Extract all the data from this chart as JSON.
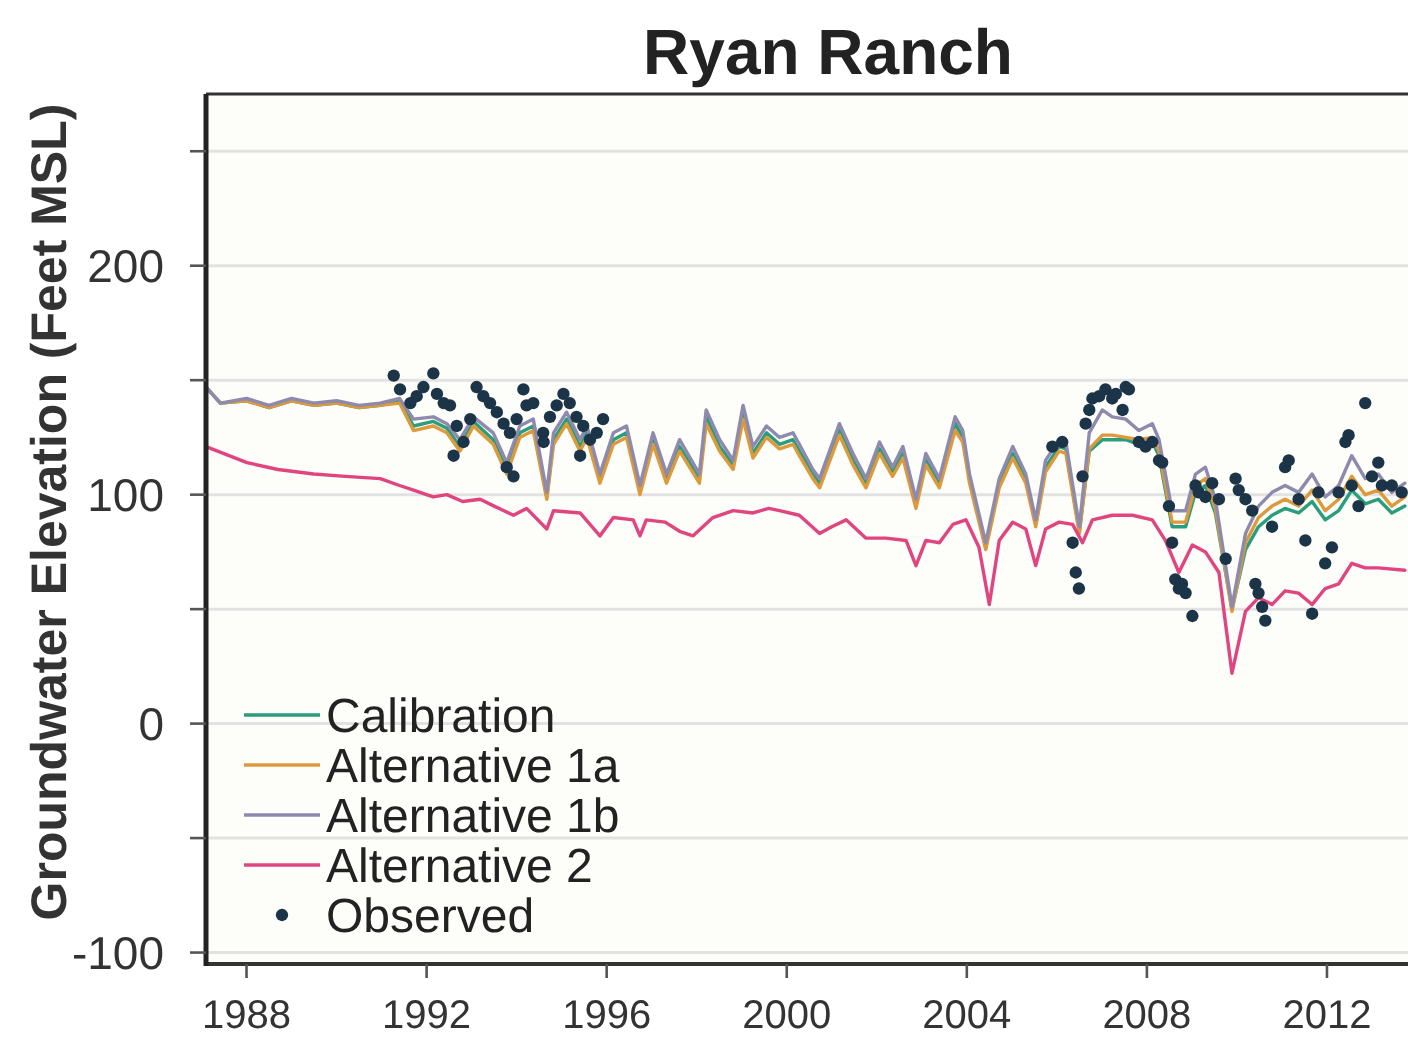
{
  "chart_data": {
    "type": "line",
    "title": "Ryan Ranch",
    "ylabel": "Groundwater Elevation (Feet MSL)",
    "x": [
      1987.1,
      1987.42,
      1988.0,
      1988.5,
      1989.0,
      1989.5,
      1990.0,
      1990.5,
      1990.97,
      1991.4,
      1991.71,
      1992.15,
      1992.45,
      1992.74,
      1993.04,
      1993.48,
      1993.78,
      1994.07,
      1994.37,
      1994.67,
      1994.82,
      1995.11,
      1995.41,
      1995.56,
      1995.85,
      1996.15,
      1996.44,
      1996.74,
      1997.03,
      1997.33,
      1997.62,
      1998.06,
      1998.21,
      1998.51,
      1998.81,
      1999.03,
      1999.25,
      1999.55,
      1999.84,
      2000.14,
      2000.28,
      2000.58,
      2000.73,
      2001.17,
      2001.47,
      2001.76,
      2002.06,
      2002.35,
      2002.58,
      2002.87,
      2003.09,
      2003.39,
      2003.74,
      2003.91,
      2004.06,
      2004.42,
      2004.72,
      2005.02,
      2005.31,
      2005.53,
      2005.75,
      2006.05,
      2006.2,
      2006.5,
      2006.72,
      2007.01,
      2007.23,
      2007.53,
      2007.82,
      2008.12,
      2008.27,
      2008.56,
      2008.86,
      2009.08,
      2009.3,
      2009.52,
      2009.89,
      2010.19,
      2010.48,
      2010.78,
      2011.07,
      2011.37,
      2011.67,
      2011.96,
      2012.26,
      2012.55,
      2012.85,
      2013.14,
      2013.44,
      2013.73
    ],
    "xlim": [
      1987.1,
      2013.8
    ],
    "xticks": [
      1988,
      1992,
      1996,
      2000,
      2004,
      2008,
      2012
    ],
    "ylim": [
      -105,
      275
    ],
    "yticks": [
      -100,
      {
        "value": -50,
        "label": null
      },
      0,
      {
        "value": 50,
        "label": null
      },
      100,
      {
        "value": 150,
        "label": null
      },
      200,
      {
        "value": 250,
        "label": null
      }
    ],
    "grid": "y",
    "legend": "bottom left",
    "series": [
      {
        "name": "Calibration",
        "color": "#2a9d7c",
        "values": [
          147,
          140,
          141,
          138,
          141,
          139,
          140,
          138,
          139,
          141,
          130,
          132,
          129,
          121,
          132,
          124,
          111,
          127,
          130,
          99,
          124,
          133,
          121,
          127,
          107,
          124,
          127,
          102,
          124,
          107,
          121,
          107,
          134,
          121,
          113,
          136,
          118,
          127,
          122,
          124,
          119,
          109,
          105,
          128,
          115,
          105,
          120,
          110,
          118,
          96,
          115,
          105,
          131,
          125,
          107,
          77,
          105,
          118,
          107,
          87,
          112,
          121,
          120,
          84,
          119,
          124,
          124,
          124,
          122,
          123,
          117,
          86,
          86,
          101,
          104,
          92,
          50,
          76,
          86,
          91,
          94,
          92,
          97,
          89,
          93,
          102,
          96,
          98,
          92,
          95
        ]
      },
      {
        "name": "Alternative 1a",
        "color": "#dc9a3c",
        "values": [
          147,
          140,
          141,
          138,
          141,
          139,
          140,
          138,
          139,
          140,
          128,
          130,
          127,
          119,
          130,
          122,
          109,
          125,
          128,
          98,
          122,
          131,
          119,
          125,
          105,
          122,
          125,
          100,
          122,
          105,
          119,
          105,
          131,
          119,
          111,
          133,
          116,
          125,
          120,
          122,
          117,
          107,
          103,
          126,
          113,
          103,
          118,
          108,
          116,
          94,
          113,
          103,
          128,
          123,
          105,
          76,
          103,
          116,
          105,
          86,
          110,
          119,
          118,
          83,
          120,
          126,
          126,
          125,
          124,
          125,
          119,
          88,
          88,
          104,
          107,
          94,
          49,
          79,
          90,
          95,
          98,
          95,
          102,
          93,
          98,
          108,
          100,
          102,
          95,
          99
        ]
      },
      {
        "name": "Alternative 1b",
        "color": "#8e8aae",
        "values": [
          147,
          140,
          142,
          139,
          142,
          140,
          141,
          139,
          140,
          142,
          133,
          134,
          131,
          124,
          134,
          127,
          114,
          130,
          133,
          101,
          127,
          136,
          124,
          130,
          109,
          127,
          130,
          104,
          127,
          109,
          124,
          109,
          137,
          124,
          115,
          139,
          121,
          130,
          125,
          127,
          122,
          111,
          107,
          131,
          118,
          107,
          123,
          112,
          121,
          98,
          118,
          107,
          134,
          128,
          109,
          79,
          107,
          121,
          109,
          89,
          115,
          124,
          123,
          86,
          127,
          137,
          134,
          133,
          128,
          131,
          124,
          93,
          93,
          109,
          112,
          98,
          51,
          83,
          95,
          101,
          104,
          101,
          109,
          99,
          104,
          117,
          107,
          109,
          101,
          105
        ]
      },
      {
        "name": "Alternative 2",
        "color": "#e0457f",
        "x": [
          1987.1,
          1988.01,
          1988.7,
          1989.49,
          1990.2,
          1990.97,
          1991.4,
          1991.71,
          1992.0,
          1992.15,
          1992.45,
          1992.8,
          1993.19,
          1993.5,
          1993.93,
          1994.22,
          1994.67,
          1994.82,
          1995.41,
          1995.85,
          1996.15,
          1996.59,
          1996.74,
          1996.88,
          1997.3,
          1997.62,
          1997.92,
          1998.36,
          1998.81,
          1999.25,
          1999.6,
          1999.84,
          2000.28,
          2000.73,
          2001.0,
          2001.32,
          2001.76,
          2002.2,
          2002.65,
          2002.87,
          2003.09,
          2003.39,
          2003.69,
          2003.98,
          2004.27,
          2004.5,
          2004.72,
          2005.02,
          2005.31,
          2005.53,
          2005.75,
          2006.05,
          2006.35,
          2006.57,
          2006.79,
          2007.23,
          2007.68,
          2008.12,
          2008.41,
          2008.71,
          2009.01,
          2009.3,
          2009.6,
          2009.89,
          2010.19,
          2010.48,
          2010.78,
          2011.07,
          2011.37,
          2011.67,
          2011.96,
          2012.26,
          2012.55,
          2012.85,
          2013.14,
          2013.73
        ],
        "values": [
          121,
          114,
          111,
          109,
          108,
          107,
          104,
          102,
          100,
          99,
          100,
          97,
          98,
          95,
          91,
          94,
          85,
          93,
          92,
          82,
          90,
          89,
          82,
          89,
          88,
          84,
          82,
          90,
          93,
          92,
          94,
          93,
          91,
          83,
          86,
          89,
          81,
          81,
          80,
          69,
          80,
          79,
          87,
          89,
          77,
          52,
          80,
          88,
          85,
          69,
          85,
          88,
          87,
          79,
          89,
          91,
          91,
          89,
          80,
          66,
          78,
          75,
          66,
          22,
          49,
          55,
          52,
          58,
          57,
          52,
          59,
          61,
          70,
          68,
          68,
          67
        ]
      },
      {
        "name": "Observed",
        "type": "scatter",
        "marker": "circle",
        "color": "#1c3447",
        "x": [
          1991.27,
          1991.41,
          1991.64,
          1991.78,
          1991.93,
          1992.15,
          1992.23,
          1992.38,
          1992.52,
          1992.6,
          1992.67,
          1992.82,
          1992.97,
          1993.11,
          1993.26,
          1993.41,
          1993.56,
          1993.71,
          1993.78,
          1993.85,
          1993.93,
          1994.0,
          1994.15,
          1994.22,
          1994.37,
          1994.59,
          1994.6,
          1994.74,
          1994.89,
          1995.04,
          1995.18,
          1995.33,
          1995.41,
          1995.48,
          1995.63,
          1995.78,
          1995.92,
          2005.9,
          2006.12,
          2006.35,
          2006.42,
          2006.49,
          2006.57,
          2006.64,
          2006.72,
          2006.79,
          2006.94,
          2007.08,
          2007.23,
          2007.31,
          2007.46,
          2007.53,
          2007.6,
          2007.82,
          2007.97,
          2008.12,
          2008.27,
          2008.34,
          2008.49,
          2008.56,
          2008.63,
          2008.71,
          2008.78,
          2008.86,
          2009.01,
          2009.08,
          2009.15,
          2009.3,
          2009.45,
          2009.6,
          2009.75,
          2009.97,
          2010.04,
          2010.19,
          2010.34,
          2010.41,
          2010.48,
          2010.56,
          2010.63,
          2010.78,
          2011.07,
          2011.15,
          2011.37,
          2011.52,
          2011.67,
          2011.81,
          2011.96,
          2012.11,
          2012.26,
          2012.41,
          2012.48,
          2012.55,
          2012.7,
          2012.85,
          2013.0,
          2013.14,
          2013.22,
          2013.44,
          2013.66
        ],
        "values": [
          152,
          146,
          140,
          143,
          147,
          153,
          144,
          140,
          139,
          117,
          130,
          123,
          133,
          147,
          143,
          140,
          136,
          131,
          112,
          127,
          108,
          133,
          146,
          139,
          140,
          127,
          123,
          134,
          139,
          144,
          140,
          134,
          117,
          130,
          124,
          127,
          133,
          121,
          123,
          79,
          66,
          59,
          108,
          131,
          137,
          142,
          143,
          146,
          142,
          144,
          137,
          147,
          146,
          123,
          121,
          123,
          115,
          114,
          95,
          79,
          63,
          59,
          61,
          57,
          47,
          104,
          101,
          99,
          105,
          98,
          72,
          107,
          102,
          98,
          93,
          61,
          57,
          51,
          45,
          86,
          112,
          115,
          98,
          80,
          48,
          101,
          70,
          77,
          101,
          123,
          126,
          104,
          95,
          140,
          108,
          114,
          104,
          104,
          101
        ]
      }
    ]
  }
}
